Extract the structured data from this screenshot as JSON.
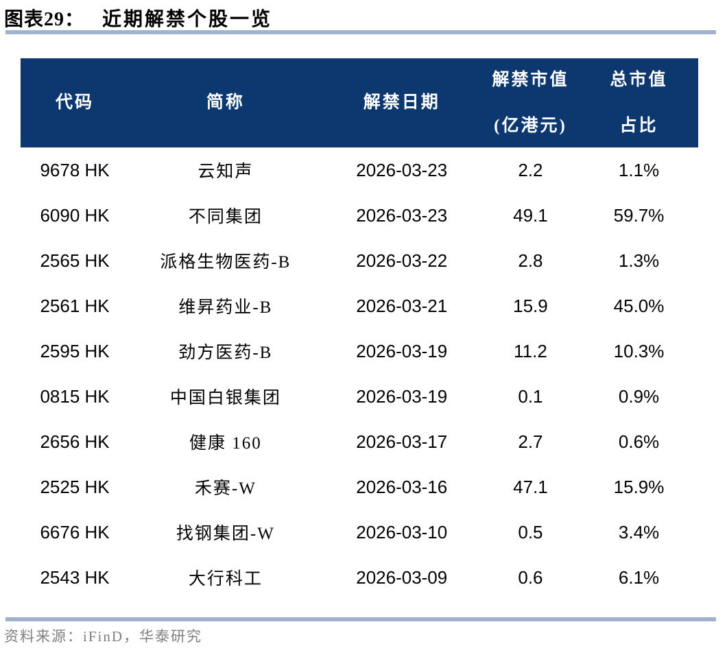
{
  "title": {
    "label": "图表29：",
    "text": "近期解禁个股一览"
  },
  "table": {
    "columns": [
      {
        "label": "代码"
      },
      {
        "label": "简称"
      },
      {
        "label": "解禁日期"
      },
      {
        "label_line1": "解禁市值",
        "label_line2": "(亿港元)"
      },
      {
        "label_line1": "总市值",
        "label_line2": "占比"
      }
    ]
  },
  "chart_data": {
    "type": "table",
    "title": "图表29： 近期解禁个股一览",
    "columns": [
      "代码",
      "简称",
      "解禁日期",
      "解禁市值(亿港元)",
      "总市值占比"
    ],
    "rows": [
      [
        "9678 HK",
        "云知声",
        "2026-03-23",
        "2.2",
        "1.1%"
      ],
      [
        "6090 HK",
        "不同集团",
        "2026-03-23",
        "49.1",
        "59.7%"
      ],
      [
        "2565 HK",
        "派格生物医药-B",
        "2026-03-22",
        "2.8",
        "1.3%"
      ],
      [
        "2561 HK",
        "维昇药业-B",
        "2026-03-21",
        "15.9",
        "45.0%"
      ],
      [
        "2595 HK",
        "劲方医药-B",
        "2026-03-19",
        "11.2",
        "10.3%"
      ],
      [
        "0815 HK",
        "中国白银集团",
        "2026-03-19",
        "0.1",
        "0.9%"
      ],
      [
        "2656 HK",
        "健康 160",
        "2026-03-17",
        "2.7",
        "0.6%"
      ],
      [
        "2525 HK",
        "禾赛-W",
        "2026-03-16",
        "47.1",
        "15.9%"
      ],
      [
        "6676 HK",
        "找钢集团-W",
        "2026-03-10",
        "0.5",
        "3.4%"
      ],
      [
        "2543 HK",
        "大行科工",
        "2026-03-09",
        "0.6",
        "6.1%"
      ]
    ]
  },
  "footer": {
    "source": "资料来源：iFinD，华泰研究"
  },
  "colors": {
    "header_bg": "#0d386f",
    "divider": "#9fb4cc",
    "source_text": "#7f7f7f",
    "body_text": "#000000"
  }
}
